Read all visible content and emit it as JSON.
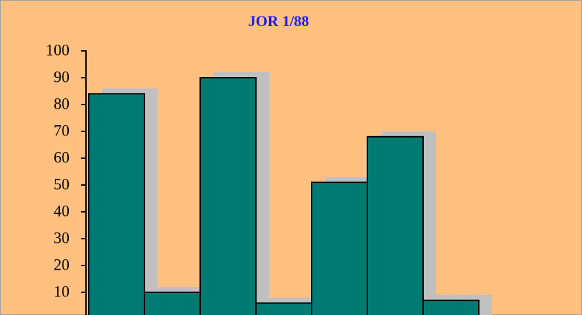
{
  "chart_data": {
    "type": "bar",
    "title": "JOR 1/88",
    "categories": [
      null,
      null,
      null,
      null,
      null,
      null,
      null
    ],
    "values": [
      84,
      10,
      90,
      6,
      51,
      68,
      7
    ],
    "color": "#007b73",
    "ylim": [
      0,
      100
    ],
    "yticks": [
      10,
      20,
      30,
      40,
      50,
      60,
      70,
      80,
      90,
      100
    ]
  }
}
